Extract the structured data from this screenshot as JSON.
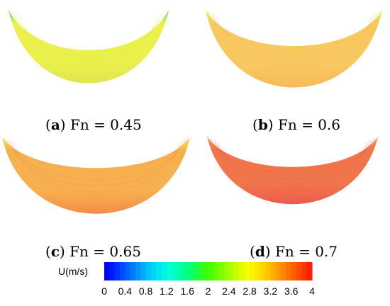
{
  "panels": [
    {
      "id": "a",
      "letter": "a",
      "text": "Fn = 0.45",
      "fill": "#eaf04c",
      "band": "#dfe64e",
      "edge": "#4fd86a"
    },
    {
      "id": "b",
      "letter": "b",
      "text": "Fn = 0.6",
      "fill": "#f8c860",
      "band": "#f6b95a",
      "edge": "#ecf04c"
    },
    {
      "id": "c",
      "letter": "c",
      "text": "Fn = 0.65",
      "fill": "#f7b04f",
      "band": "#f48c49",
      "edge": "#f2e84a"
    },
    {
      "id": "d",
      "letter": "d",
      "text": "Fn = 0.7",
      "fill": "#f1754a",
      "band": "#ee5a4d",
      "edge": "#f29c4d"
    }
  ],
  "colorbar": {
    "title": "U(m/s)",
    "min": 0,
    "max": 4,
    "ticks": [
      "0",
      "0.4",
      "0.8",
      "1.2",
      "1.6",
      "2",
      "2.4",
      "2.8",
      "3.2",
      "3.6",
      "4"
    ],
    "colors": [
      "#0000ff",
      "#0060ff",
      "#00c0ff",
      "#00ffe0",
      "#00ff80",
      "#40ff00",
      "#a0ff00",
      "#ffff00",
      "#ffc000",
      "#ff7000",
      "#ff2000"
    ]
  }
}
